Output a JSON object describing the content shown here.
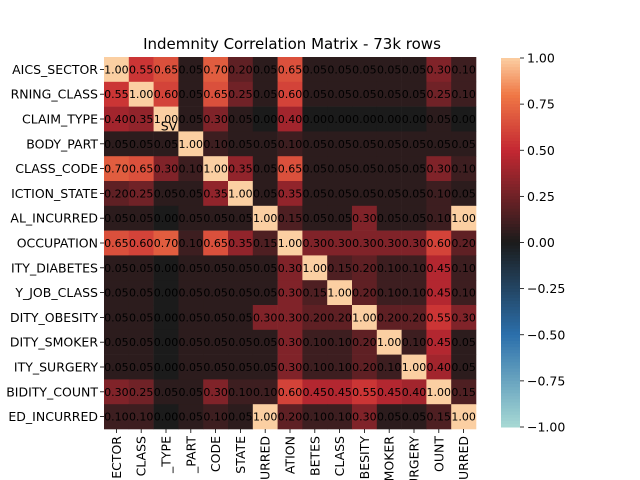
{
  "chart_data": {
    "type": "heatmap",
    "title": "Indemnity Correlation Matrix - 73k rows",
    "row_labels": [
      "AICS_SECTOR",
      "RNING_CLASS",
      "CLAIM_TYPE",
      "BODY_PART",
      "CLASS_CODE",
      "ICTION_STATE",
      "AL_INCURRED",
      "OCCUPATION",
      "ITY_DIABETES",
      "Y_JOB_CLASS",
      "DITY_OBESITY",
      "DITY_SMOKER",
      "ITY_SURGERY",
      "BIDITY_COUNT",
      "ED_INCURRED"
    ],
    "col_labels": [
      "ECTOR",
      "CLASS",
      "_TYPE",
      "_PART",
      "CODE",
      "STATE",
      "URRED",
      "ATION",
      "BETES",
      "CLASS",
      "BESITY",
      "MOKER",
      "URGERY",
      "OUNT",
      "URRED"
    ],
    "values": [
      [
        1.0,
        0.55,
        0.65,
        0.05,
        0.7,
        0.2,
        0.05,
        0.65,
        0.05,
        0.05,
        0.05,
        0.05,
        0.05,
        0.3,
        0.1
      ],
      [
        0.55,
        1.0,
        0.6,
        0.05,
        0.65,
        0.25,
        0.05,
        0.6,
        0.05,
        0.05,
        0.05,
        0.05,
        0.05,
        0.25,
        0.1
      ],
      [
        0.4,
        0.35,
        1.0,
        0.05,
        0.3,
        0.05,
        0.0,
        0.4,
        0.0,
        0.0,
        0.0,
        0.0,
        0.0,
        0.05,
        0.0
      ],
      [
        0.05,
        0.05,
        0.05,
        1.0,
        0.1,
        0.05,
        0.05,
        0.1,
        0.05,
        0.05,
        0.05,
        0.05,
        0.05,
        0.05,
        0.05
      ],
      [
        0.7,
        0.65,
        0.3,
        0.1,
        1.0,
        0.35,
        0.05,
        0.65,
        0.05,
        0.05,
        0.05,
        0.05,
        0.05,
        0.3,
        0.1
      ],
      [
        0.2,
        0.25,
        0.05,
        0.05,
        0.35,
        1.0,
        0.05,
        0.35,
        0.05,
        0.05,
        0.05,
        0.05,
        0.05,
        0.1,
        0.05
      ],
      [
        0.05,
        0.05,
        0.0,
        0.05,
        0.05,
        0.05,
        1.0,
        0.15,
        0.05,
        0.05,
        0.3,
        0.05,
        0.05,
        0.1,
        1.0
      ],
      [
        0.65,
        0.6,
        0.7,
        0.1,
        0.65,
        0.35,
        0.15,
        1.0,
        0.3,
        0.3,
        0.3,
        0.3,
        0.3,
        0.6,
        0.2
      ],
      [
        0.05,
        0.05,
        0.0,
        0.05,
        0.05,
        0.05,
        0.05,
        0.3,
        1.0,
        0.15,
        0.2,
        0.1,
        0.1,
        0.45,
        0.1
      ],
      [
        0.05,
        0.05,
        0.0,
        0.05,
        0.05,
        0.05,
        0.05,
        0.3,
        0.15,
        1.0,
        0.2,
        0.1,
        0.1,
        0.45,
        0.1
      ],
      [
        0.05,
        0.05,
        0.0,
        0.05,
        0.05,
        0.05,
        0.3,
        0.3,
        0.2,
        0.2,
        1.0,
        0.2,
        0.2,
        0.55,
        0.3
      ],
      [
        0.05,
        0.05,
        0.0,
        0.05,
        0.05,
        0.05,
        0.05,
        0.3,
        0.1,
        0.1,
        0.2,
        1.0,
        0.1,
        0.45,
        0.05
      ],
      [
        0.05,
        0.05,
        0.0,
        0.05,
        0.05,
        0.05,
        0.05,
        0.3,
        0.1,
        0.1,
        0.2,
        0.1,
        1.0,
        0.4,
        0.05
      ],
      [
        0.3,
        0.25,
        0.05,
        0.05,
        0.3,
        0.1,
        0.1,
        0.6,
        0.45,
        0.45,
        0.55,
        0.45,
        0.4,
        1.0,
        0.15
      ],
      [
        0.1,
        0.1,
        0.0,
        0.05,
        0.1,
        0.05,
        1.0,
        0.2,
        0.1,
        0.1,
        0.3,
        0.05,
        0.05,
        0.15,
        1.0
      ]
    ],
    "vmin": -1.0,
    "vmax": 1.0,
    "colorbar_ticks": [
      "1.00",
      "0.75",
      "0.50",
      "0.25",
      "0.00",
      "−0.25",
      "−0.50",
      "−0.75",
      "−1.00"
    ],
    "colorbar_tick_values": [
      1.0,
      0.75,
      0.5,
      0.25,
      0.0,
      -0.25,
      -0.5,
      -0.75,
      -1.0
    ],
    "cell_label_text": "SV",
    "colormap": "icefire-like diverging",
    "colors": {
      "low": "#a7d9d4",
      "mid": "#1b1b1b",
      "high": "#fbcfa2"
    }
  }
}
